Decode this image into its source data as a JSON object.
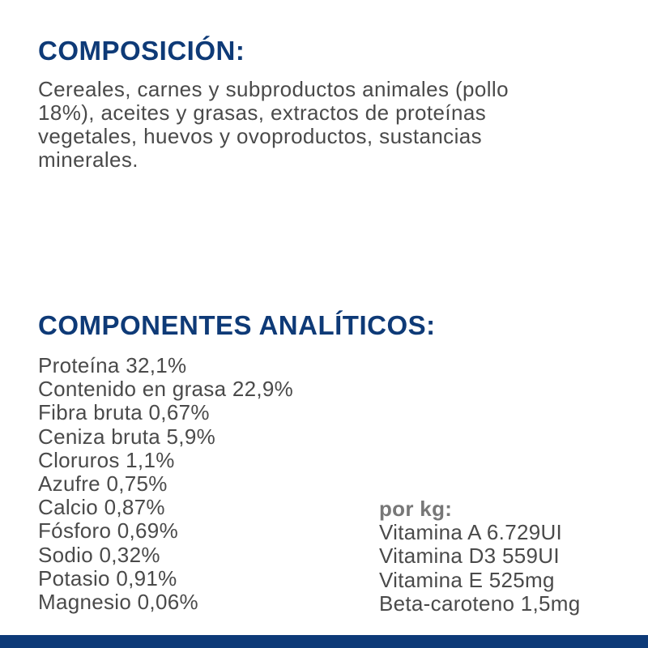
{
  "composicion": {
    "title": "COMPOSICIÓN:",
    "lines": [
      "Cereales, carnes y subproductos animales (pollo",
      "18%), aceites y grasas, extractos de proteínas",
      "vegetales, huevos y ovoproductos, sustancias",
      "minerales."
    ]
  },
  "analiticos": {
    "title": "COMPONENTES ANALÍTICOS:",
    "items": [
      "Proteína 32,1%",
      "Contenido en grasa 22,9%",
      "Fibra bruta 0,67%",
      "Ceniza bruta 5,9%",
      "Cloruros 1,1%",
      "Azufre 0,75%",
      "Calcio 0,87%",
      "Fósforo 0,69%",
      "Sodio 0,32%",
      "Potasio 0,91%",
      "Magnesio 0,06%"
    ],
    "per_kg": {
      "label": "por kg:",
      "items": [
        "Vitamina A 6.729UI",
        "Vitamina D3 559UI",
        "Vitamina E 525mg",
        "Beta-caroteno 1,5mg"
      ]
    }
  },
  "colors": {
    "heading": "#0e3a77",
    "text": "#4a4a4a",
    "bottom_bar": "#0d3a78"
  }
}
